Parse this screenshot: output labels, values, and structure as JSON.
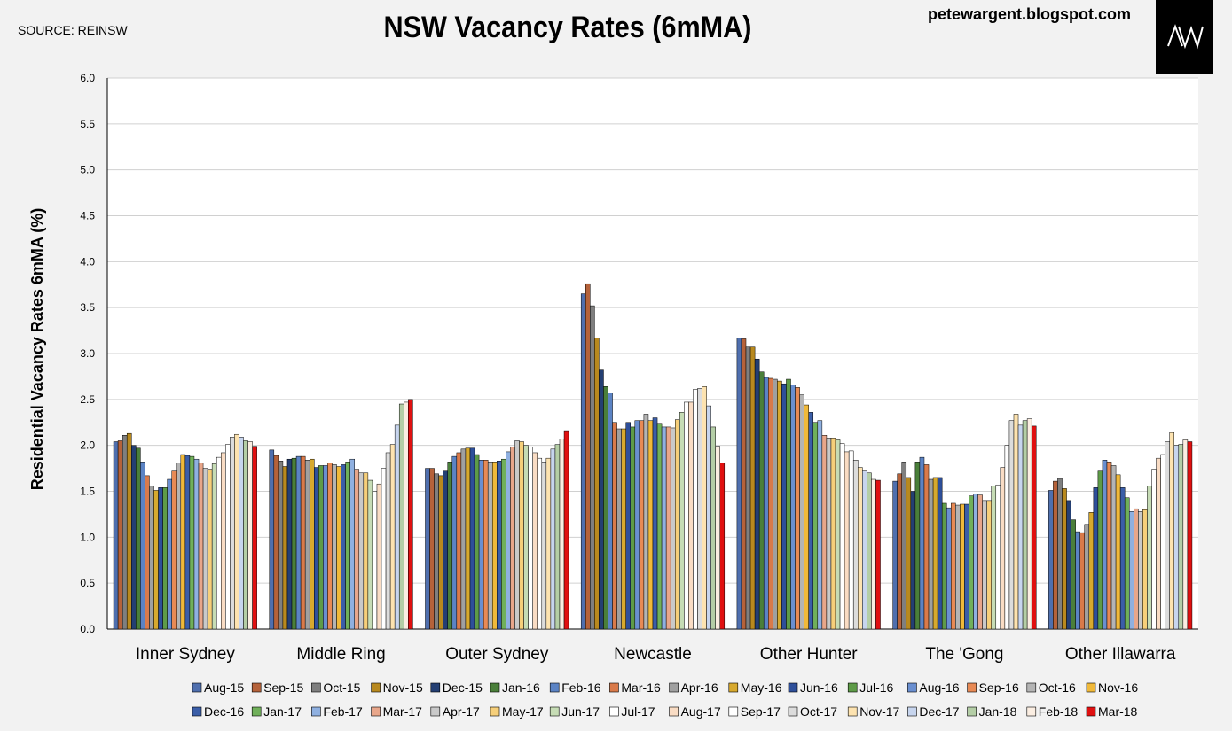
{
  "source": "SOURCE: REINSW",
  "site": "petewargent.blogspot.com",
  "logo_text": "AW",
  "chart_data": {
    "type": "bar",
    "title": "NSW Vacancy Rates (6mMA)",
    "xlabel": "",
    "ylabel": "Residential Vacancy Rates 6mMA (%)",
    "ylim": [
      0,
      6
    ],
    "yticks": [
      "0.0",
      "0.5",
      "1.0",
      "1.5",
      "2.0",
      "2.5",
      "3.0",
      "3.5",
      "4.0",
      "4.5",
      "5.0",
      "5.5",
      "6.0"
    ],
    "grid": true,
    "legend_position": "bottom",
    "categories": [
      "Inner Sydney",
      "Middle Ring",
      "Outer Sydney",
      "Newcastle",
      "Other Hunter",
      "The 'Gong",
      "Other Illawarra"
    ],
    "series": [
      {
        "name": "Aug-15",
        "color": "#4f6fae",
        "values": [
          2.04,
          1.95,
          1.75,
          3.65,
          3.17,
          1.61,
          1.51
        ]
      },
      {
        "name": "Sep-15",
        "color": "#b5623a",
        "values": [
          2.05,
          1.89,
          1.75,
          3.76,
          3.16,
          1.69,
          1.61
        ]
      },
      {
        "name": "Oct-15",
        "color": "#7f7f7f",
        "values": [
          2.11,
          1.83,
          1.69,
          3.52,
          3.07,
          1.82,
          1.64
        ]
      },
      {
        "name": "Nov-15",
        "color": "#b8891e",
        "values": [
          2.13,
          1.77,
          1.67,
          3.17,
          3.07,
          1.65,
          1.53
        ]
      },
      {
        "name": "Dec-15",
        "color": "#243f73",
        "values": [
          2.0,
          1.85,
          1.72,
          2.82,
          2.94,
          1.5,
          1.4
        ]
      },
      {
        "name": "Jan-16",
        "color": "#4a7f3a",
        "values": [
          1.97,
          1.86,
          1.82,
          2.64,
          2.8,
          1.82,
          1.19
        ]
      },
      {
        "name": "Feb-16",
        "color": "#5b83c4",
        "values": [
          1.82,
          1.88,
          1.88,
          2.57,
          2.74,
          1.87,
          1.06
        ]
      },
      {
        "name": "Mar-16",
        "color": "#d97a4a",
        "values": [
          1.67,
          1.88,
          1.92,
          2.25,
          2.73,
          1.79,
          1.05
        ]
      },
      {
        "name": "Apr-16",
        "color": "#a0a0a0",
        "values": [
          1.56,
          1.84,
          1.96,
          2.18,
          2.72,
          1.63,
          1.14
        ]
      },
      {
        "name": "May-16",
        "color": "#d7a92e",
        "values": [
          1.51,
          1.85,
          1.97,
          2.18,
          2.7,
          1.65,
          1.27
        ]
      },
      {
        "name": "Jun-16",
        "color": "#2e4f9a",
        "values": [
          1.54,
          1.76,
          1.97,
          2.25,
          2.67,
          1.65,
          1.54
        ]
      },
      {
        "name": "Jul-16",
        "color": "#5e9b48",
        "values": [
          1.54,
          1.78,
          1.9,
          2.2,
          2.72,
          1.37,
          1.72
        ]
      },
      {
        "name": "Aug-16",
        "color": "#6a8fd0",
        "values": [
          1.63,
          1.78,
          1.84,
          2.27,
          2.66,
          1.32,
          1.84
        ]
      },
      {
        "name": "Sep-16",
        "color": "#e88a55",
        "values": [
          1.72,
          1.81,
          1.84,
          2.27,
          2.63,
          1.37,
          1.82
        ]
      },
      {
        "name": "Oct-16",
        "color": "#b4b4b4",
        "values": [
          1.81,
          1.79,
          1.82,
          2.34,
          2.55,
          1.35,
          1.78
        ]
      },
      {
        "name": "Nov-16",
        "color": "#f0b93a",
        "values": [
          1.9,
          1.77,
          1.82,
          2.27,
          2.44,
          1.36,
          1.68
        ]
      },
      {
        "name": "Dec-16",
        "color": "#3b5ea8",
        "values": [
          1.89,
          1.79,
          1.83,
          2.3,
          2.36,
          1.36,
          1.54
        ]
      },
      {
        "name": "Jan-17",
        "color": "#70b05a",
        "values": [
          1.88,
          1.82,
          1.85,
          2.24,
          2.25,
          1.45,
          1.43
        ]
      },
      {
        "name": "Feb-17",
        "color": "#8fb0e0",
        "values": [
          1.85,
          1.85,
          1.93,
          2.2,
          2.27,
          1.47,
          1.28
        ]
      },
      {
        "name": "Mar-17",
        "color": "#e8a68a",
        "values": [
          1.81,
          1.74,
          1.98,
          2.2,
          2.11,
          1.46,
          1.31
        ]
      },
      {
        "name": "Apr-17",
        "color": "#c9c9c9",
        "values": [
          1.75,
          1.7,
          2.05,
          2.19,
          2.08,
          1.4,
          1.28
        ]
      },
      {
        "name": "May-17",
        "color": "#f6cf7a",
        "values": [
          1.74,
          1.7,
          2.04,
          2.28,
          2.08,
          1.4,
          1.3
        ]
      },
      {
        "name": "Jun-17",
        "color": "#c6dcb5",
        "values": [
          1.8,
          1.62,
          2.0,
          2.36,
          2.06,
          1.56,
          1.56
        ]
      },
      {
        "name": "Jul-17",
        "color": "#ffffff",
        "values": [
          1.87,
          1.5,
          1.98,
          2.47,
          2.02,
          1.57,
          1.74
        ]
      },
      {
        "name": "Aug-17",
        "color": "#f9dcc4",
        "values": [
          1.92,
          1.58,
          1.92,
          2.47,
          1.93,
          1.76,
          1.86
        ]
      },
      {
        "name": "Sep-17",
        "color": "#ffffff",
        "values": [
          2.01,
          1.75,
          1.86,
          2.61,
          1.94,
          2.0,
          1.9
        ]
      },
      {
        "name": "Oct-17",
        "color": "#dcdcdc",
        "values": [
          2.09,
          1.92,
          1.82,
          2.62,
          1.84,
          2.27,
          2.04
        ]
      },
      {
        "name": "Nov-17",
        "color": "#fde3b0",
        "values": [
          2.12,
          2.01,
          1.86,
          2.64,
          1.76,
          2.34,
          2.14
        ]
      },
      {
        "name": "Dec-17",
        "color": "#c7d5ee",
        "values": [
          2.09,
          2.22,
          1.96,
          2.43,
          1.72,
          2.22,
          2.0
        ]
      },
      {
        "name": "Jan-18",
        "color": "#b4cea6",
        "values": [
          2.05,
          2.45,
          2.01,
          2.2,
          1.7,
          2.27,
          2.01
        ]
      },
      {
        "name": "Feb-18",
        "color": "#fbeee2",
        "values": [
          2.04,
          2.47,
          2.07,
          1.99,
          1.63,
          2.29,
          2.06
        ]
      },
      {
        "name": "Mar-18",
        "color": "#e01010",
        "values": [
          1.99,
          2.5,
          2.16,
          1.81,
          1.62,
          2.21,
          2.04
        ]
      }
    ]
  }
}
